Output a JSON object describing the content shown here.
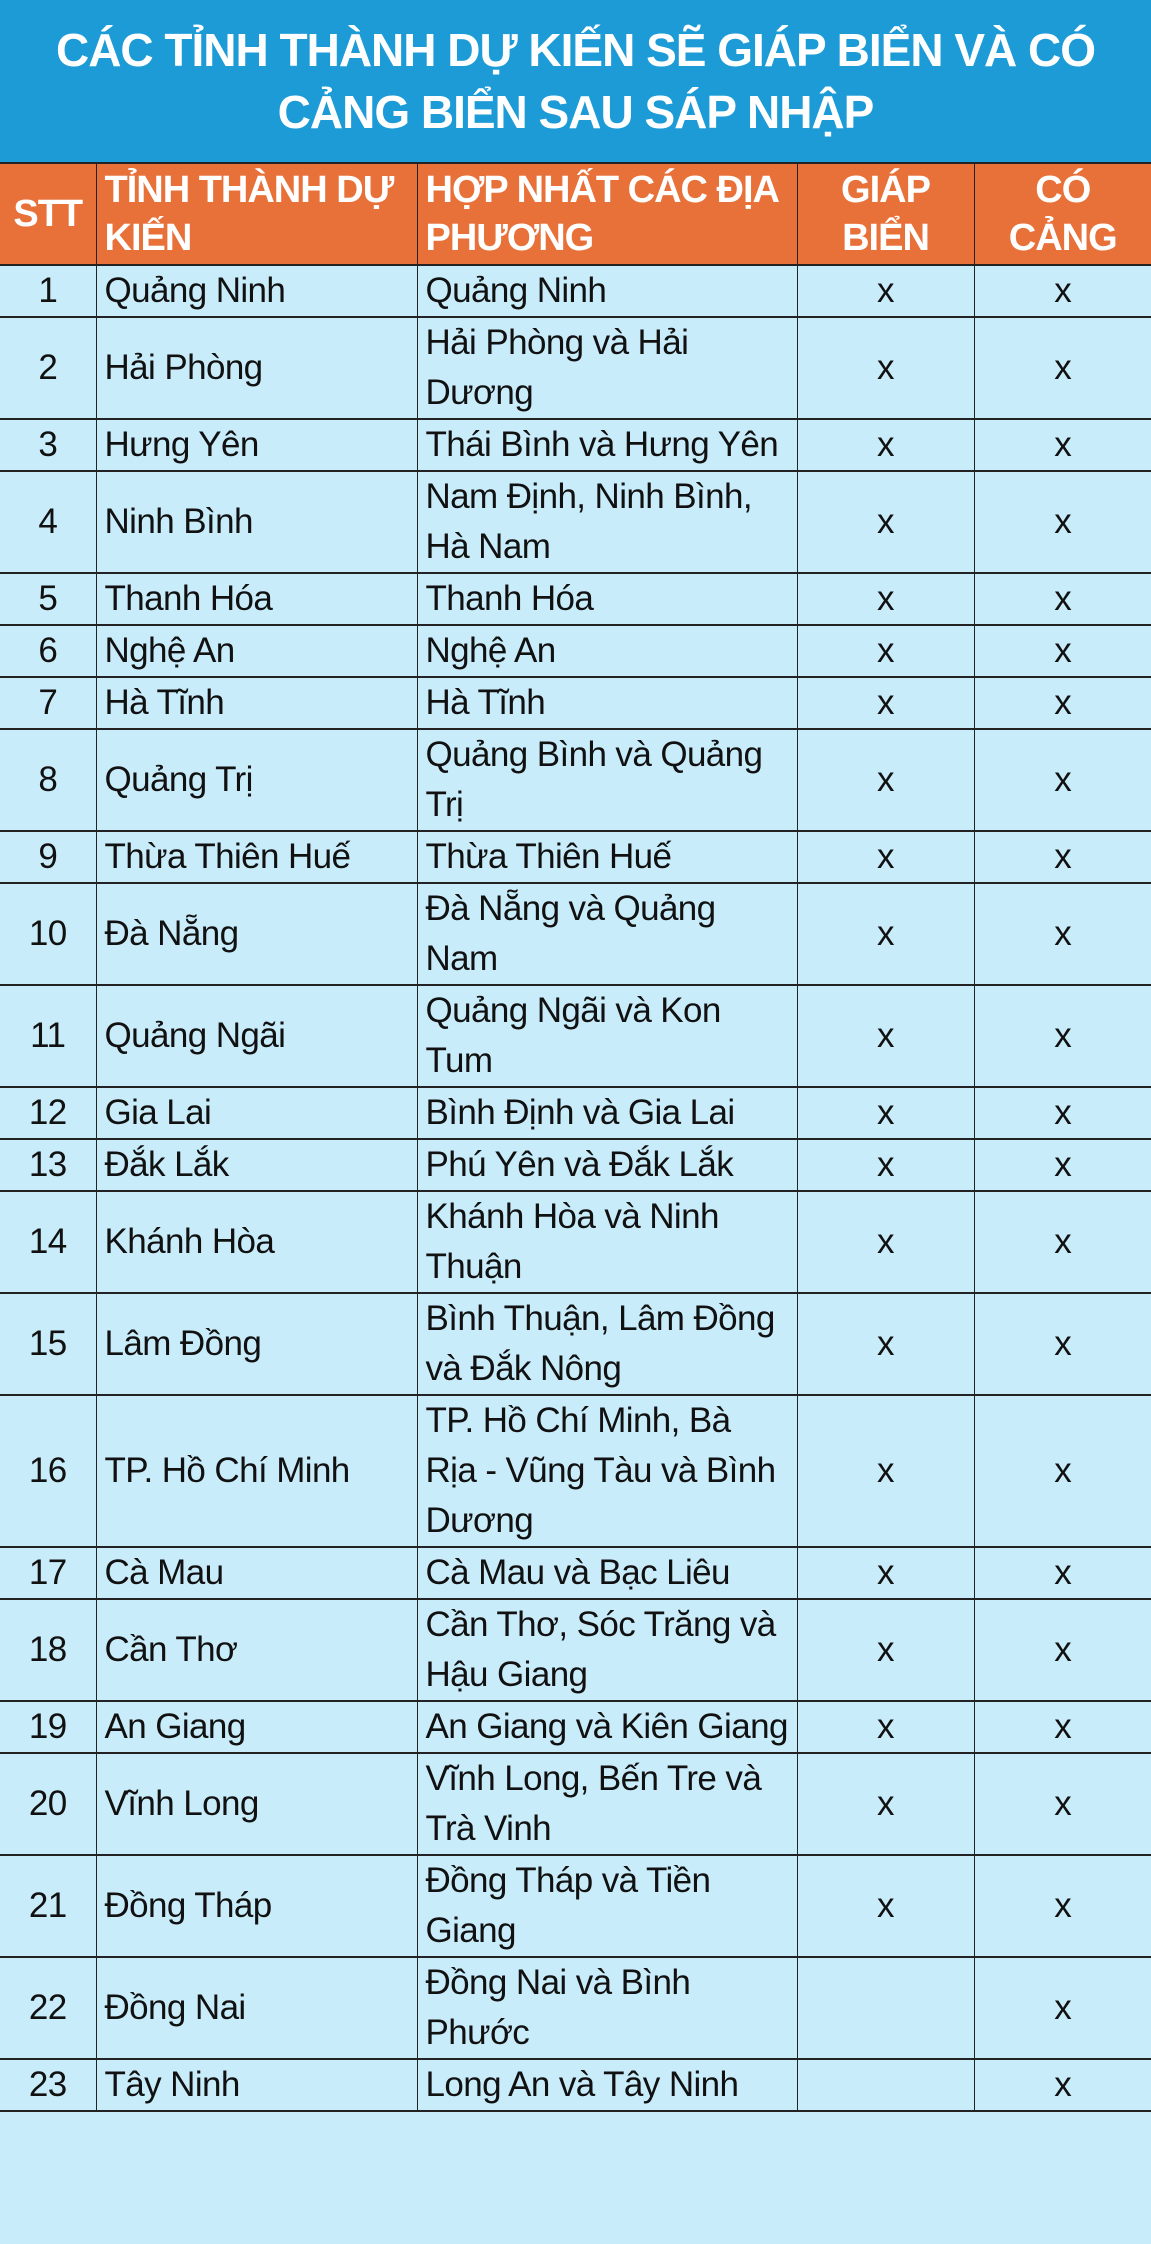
{
  "title": "CÁC TỈNH THÀNH DỰ KIẾN SẼ GIÁP BIỂN VÀ CÓ CẢNG BIỂN SAU SÁP NHẬP",
  "colors": {
    "title_bg": "#1c9bd7",
    "header_bg": "#e8713a",
    "row_bg": "#c9ecfb"
  },
  "headers": [
    "STT",
    "TỈNH THÀNH DỰ KIẾN",
    "HỢP NHẤT CÁC ĐỊA PHƯƠNG",
    "GIÁP BIỂN",
    "CÓ CẢNG"
  ],
  "rows": [
    {
      "stt": "1",
      "province": "Quảng Ninh",
      "merged": "Quảng Ninh",
      "sea": "x",
      "port": "x"
    },
    {
      "stt": "2",
      "province": "Hải Phòng",
      "merged": "Hải Phòng và Hải Dương",
      "sea": "x",
      "port": "x"
    },
    {
      "stt": "3",
      "province": "Hưng Yên",
      "merged": "Thái Bình và Hưng Yên",
      "sea": "x",
      "port": "x"
    },
    {
      "stt": "4",
      "province": "Ninh Bình",
      "merged": "Nam Định, Ninh Bình, Hà Nam",
      "sea": "x",
      "port": "x"
    },
    {
      "stt": "5",
      "province": "Thanh Hóa",
      "merged": "Thanh Hóa",
      "sea": "x",
      "port": "x"
    },
    {
      "stt": "6",
      "province": "Nghệ An",
      "merged": "Nghệ An",
      "sea": "x",
      "port": "x"
    },
    {
      "stt": "7",
      "province": "Hà Tĩnh",
      "merged": "Hà Tĩnh",
      "sea": "x",
      "port": "x"
    },
    {
      "stt": "8",
      "province": "Quảng Trị",
      "merged": "Quảng Bình và Quảng Trị",
      "sea": "x",
      "port": "x"
    },
    {
      "stt": "9",
      "province": "Thừa Thiên Huế",
      "merged": "Thừa Thiên Huế",
      "sea": "x",
      "port": "x"
    },
    {
      "stt": "10",
      "province": "Đà Nẵng",
      "merged": "Đà Nẵng và Quảng Nam",
      "sea": "x",
      "port": "x"
    },
    {
      "stt": "11",
      "province": "Quảng Ngãi",
      "merged": "Quảng Ngãi và Kon Tum",
      "sea": "x",
      "port": "x"
    },
    {
      "stt": "12",
      "province": "Gia Lai",
      "merged": "Bình Định và Gia Lai",
      "sea": "x",
      "port": "x"
    },
    {
      "stt": "13",
      "province": "Đắk Lắk",
      "merged": "Phú Yên và Đắk Lắk",
      "sea": "x",
      "port": "x"
    },
    {
      "stt": "14",
      "province": "Khánh Hòa",
      "merged": "Khánh Hòa và Ninh Thuận",
      "sea": "x",
      "port": "x"
    },
    {
      "stt": "15",
      "province": "Lâm Đồng",
      "merged": "Bình Thuận, Lâm Đồng và Đắk Nông",
      "sea": "x",
      "port": "x"
    },
    {
      "stt": "16",
      "province": "TP. Hồ Chí Minh",
      "merged": "TP. Hồ Chí Minh, Bà Rịa - Vũng Tàu và Bình Dương",
      "sea": "x",
      "port": "x"
    },
    {
      "stt": "17",
      "province": "Cà Mau",
      "merged": "Cà Mau và Bạc Liêu",
      "sea": "x",
      "port": "x"
    },
    {
      "stt": "18",
      "province": "Cần Thơ",
      "merged": "Cần Thơ, Sóc Trăng và Hậu Giang",
      "sea": "x",
      "port": "x"
    },
    {
      "stt": "19",
      "province": "An Giang",
      "merged": "An Giang và Kiên Giang",
      "sea": "x",
      "port": "x"
    },
    {
      "stt": "20",
      "province": "Vĩnh Long",
      "merged": "Vĩnh Long, Bến Tre và Trà Vinh",
      "sea": "x",
      "port": "x"
    },
    {
      "stt": "21",
      "province": "Đồng Tháp",
      "merged": "Đồng Tháp và Tiền Giang",
      "sea": "x",
      "port": "x"
    },
    {
      "stt": "22",
      "province": "Đồng Nai",
      "merged": "Đồng Nai và Bình Phước",
      "sea": "",
      "port": "x"
    },
    {
      "stt": "23",
      "province": "Tây Ninh",
      "merged": "Long An và Tây Ninh",
      "sea": "",
      "port": "x"
    }
  ]
}
